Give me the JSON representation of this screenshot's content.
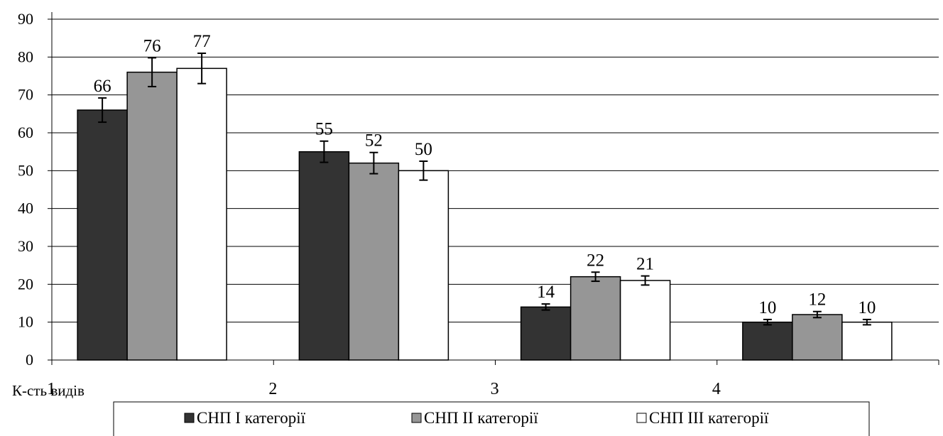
{
  "chart_data": {
    "type": "bar",
    "categories": [
      "1",
      "2",
      "3",
      "4"
    ],
    "xlabel": "К-сть видів",
    "ylim": [
      0,
      90
    ],
    "yticks": [
      0,
      10,
      20,
      30,
      40,
      50,
      60,
      70,
      80,
      90
    ],
    "grid": true,
    "legend_position": "bottom",
    "series": [
      {
        "name": "СНП І категорії",
        "color": "#333333",
        "values": [
          66,
          55,
          14,
          10
        ],
        "errors": [
          3.2,
          2.8,
          0.8,
          0.7
        ]
      },
      {
        "name": "СНП ІІ категорії",
        "color": "#969696",
        "values": [
          76,
          52,
          22,
          12
        ],
        "errors": [
          3.8,
          2.8,
          1.2,
          0.8
        ]
      },
      {
        "name": "СНП ІІІ категорії",
        "color": "#ffffff",
        "values": [
          77,
          50,
          21,
          10
        ],
        "errors": [
          4.0,
          2.5,
          1.2,
          0.7
        ]
      }
    ]
  }
}
